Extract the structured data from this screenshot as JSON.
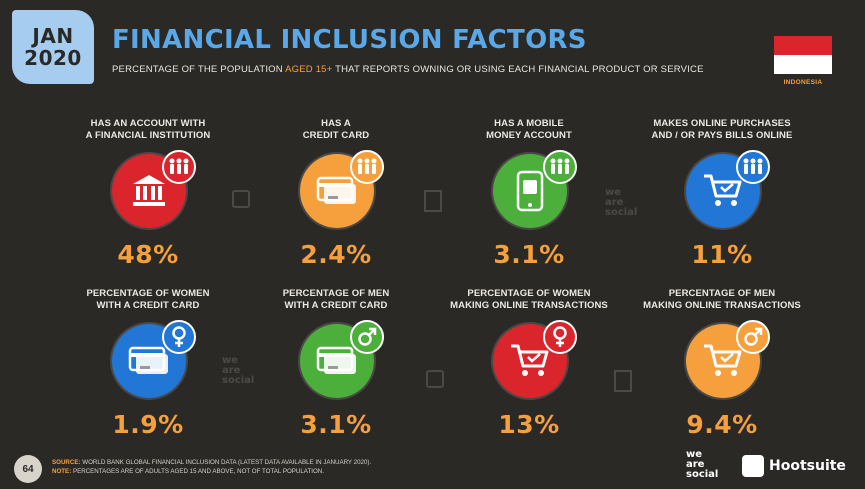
{
  "date": {
    "month": "JAN",
    "year": "2020"
  },
  "title": "FINANCIAL INCLUSION FACTORS",
  "subtitle": {
    "pre": "PERCENTAGE OF THE POPULATION ",
    "highlight": "AGED 15+",
    "post": " THAT REPORTS OWNING OR USING EACH FINANCIAL PRODUCT OR SERVICE"
  },
  "country": "INDONESIA",
  "colors": {
    "accent": "#f5a03c",
    "title": "#5ba8e8",
    "red": "#d9252b",
    "orange": "#f5a03c",
    "green": "#4caf3b",
    "blue": "#2176d6"
  },
  "chart_data": {
    "type": "table",
    "items": [
      {
        "label_l1": "HAS AN ACCOUNT WITH",
        "label_l2": "A FINANCIAL INSTITUTION",
        "value": 48,
        "display": "48%",
        "icon": "bank-icon",
        "badge": "people-icon",
        "color": "#d9252b"
      },
      {
        "label_l1": "HAS A",
        "label_l2": "CREDIT CARD",
        "value": 2.4,
        "display": "2.4%",
        "icon": "credit-card-icon",
        "badge": "people-icon",
        "color": "#f5a03c"
      },
      {
        "label_l1": "HAS A MOBILE",
        "label_l2": "MONEY ACCOUNT",
        "value": 3.1,
        "display": "3.1%",
        "icon": "mobile-money-icon",
        "badge": "people-icon",
        "color": "#4caf3b"
      },
      {
        "label_l1": "MAKES ONLINE PURCHASES",
        "label_l2": "AND / OR PAYS BILLS ONLINE",
        "value": 11,
        "display": "11%",
        "icon": "shopping-cart-icon",
        "badge": "people-icon",
        "color": "#2176d6"
      },
      {
        "label_l1": "PERCENTAGE OF WOMEN",
        "label_l2": "WITH A CREDIT CARD",
        "value": 1.9,
        "display": "1.9%",
        "icon": "credit-card-icon",
        "badge": "female-icon",
        "color": "#2176d6"
      },
      {
        "label_l1": "PERCENTAGE OF MEN",
        "label_l2": "WITH A CREDIT CARD",
        "value": 3.1,
        "display": "3.1%",
        "icon": "credit-card-icon",
        "badge": "male-icon",
        "color": "#4caf3b"
      },
      {
        "label_l1": "PERCENTAGE OF WOMEN",
        "label_l2": "MAKING ONLINE TRANSACTIONS",
        "value": 13,
        "display": "13%",
        "icon": "shopping-cart-icon",
        "badge": "female-icon",
        "color": "#d9252b"
      },
      {
        "label_l1": "PERCENTAGE OF MEN",
        "label_l2": "MAKING ONLINE TRANSACTIONS",
        "value": 9.4,
        "display": "9.4%",
        "icon": "shopping-cart-icon",
        "badge": "male-icon",
        "color": "#f5a03c"
      }
    ]
  },
  "footer": {
    "page": "64",
    "source_label": "SOURCE:",
    "source_text": " WORLD BANK GLOBAL FINANCIAL INCLUSION DATA (LATEST DATA AVAILABLE IN JANUARY 2020).",
    "note_label": "NOTE:",
    "note_text": " PERCENTAGES ARE OF ADULTS AGED 15 AND ABOVE, NOT OF TOTAL POPULATION."
  },
  "brand": {
    "was_l1": "we",
    "was_l2": "are",
    "was_l3": "social",
    "hootsuite": "Hootsuite"
  }
}
